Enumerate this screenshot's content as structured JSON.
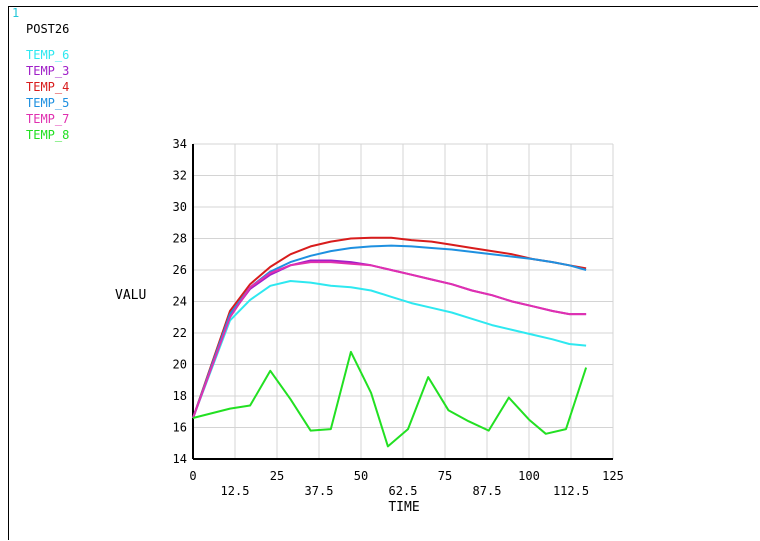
{
  "window_number": "1",
  "plot_title": "POST26",
  "colors": {
    "grid": "#d4d4d4",
    "axis": "#000000",
    "text": "#000000"
  },
  "chart_data": {
    "type": "line",
    "title": "POST26",
    "xlabel": "TIME",
    "ylabel": "VALU",
    "xlim": [
      0,
      125
    ],
    "ylim": [
      14,
      34
    ],
    "x_ticks": [
      0,
      12.5,
      25,
      37.5,
      50,
      62.5,
      75,
      87.5,
      100,
      112.5,
      125
    ],
    "x_tick_labels": [
      "0",
      "12.5",
      "25",
      "37.5",
      "50",
      "62.5",
      "75",
      "87.5",
      "100",
      "112.5",
      "125"
    ],
    "y_ticks": [
      14,
      16,
      18,
      20,
      22,
      24,
      26,
      28,
      30,
      32,
      34
    ],
    "y_tick_labels": [
      "14",
      "16",
      "18",
      "20",
      "22",
      "24",
      "26",
      "28",
      "30",
      "32",
      "34"
    ],
    "grid": true,
    "legend_position": "top-left",
    "series": [
      {
        "name": "TEMP_6",
        "color": "#2ee8f0",
        "points": [
          [
            0,
            16.6
          ],
          [
            11,
            22.8
          ],
          [
            17,
            24.1
          ],
          [
            23,
            25.0
          ],
          [
            29,
            25.3
          ],
          [
            35,
            25.2
          ],
          [
            41,
            25.0
          ],
          [
            47,
            24.9
          ],
          [
            53,
            24.7
          ],
          [
            59,
            24.3
          ],
          [
            65,
            23.9
          ],
          [
            71,
            23.6
          ],
          [
            77,
            23.3
          ],
          [
            83,
            22.9
          ],
          [
            89,
            22.5
          ],
          [
            95,
            22.2
          ],
          [
            101,
            21.9
          ],
          [
            107,
            21.6
          ],
          [
            112,
            21.3
          ],
          [
            117,
            21.2
          ]
        ]
      },
      {
        "name": "TEMP_3",
        "color": "#a020c8",
        "points": [
          [
            0,
            16.6
          ],
          [
            11,
            23.1
          ],
          [
            17,
            24.8
          ],
          [
            23,
            25.7
          ],
          [
            29,
            26.3
          ],
          [
            35,
            26.6
          ],
          [
            41,
            26.6
          ],
          [
            47,
            26.5
          ],
          [
            53,
            26.3
          ],
          [
            59,
            26.0
          ],
          [
            65,
            25.7
          ],
          [
            71,
            25.4
          ],
          [
            77,
            25.1
          ],
          [
            83,
            24.7
          ],
          [
            89,
            24.4
          ],
          [
            95,
            24.0
          ],
          [
            101,
            23.7
          ],
          [
            107,
            23.4
          ],
          [
            112,
            23.2
          ],
          [
            117,
            23.2
          ]
        ]
      },
      {
        "name": "TEMP_4",
        "color": "#d81c1c",
        "points": [
          [
            0,
            16.6
          ],
          [
            11,
            23.4
          ],
          [
            17,
            25.1
          ],
          [
            23,
            26.2
          ],
          [
            29,
            27.0
          ],
          [
            35,
            27.5
          ],
          [
            41,
            27.8
          ],
          [
            47,
            28.0
          ],
          [
            53,
            28.05
          ],
          [
            59,
            28.05
          ],
          [
            65,
            27.9
          ],
          [
            71,
            27.8
          ],
          [
            77,
            27.6
          ],
          [
            83,
            27.4
          ],
          [
            89,
            27.2
          ],
          [
            95,
            27.0
          ],
          [
            101,
            26.7
          ],
          [
            107,
            26.5
          ],
          [
            112,
            26.3
          ],
          [
            117,
            26.1
          ]
        ]
      },
      {
        "name": "TEMP_5",
        "color": "#1e90e0",
        "points": [
          [
            0,
            16.6
          ],
          [
            11,
            23.2
          ],
          [
            17,
            24.9
          ],
          [
            23,
            25.9
          ],
          [
            29,
            26.5
          ],
          [
            35,
            26.9
          ],
          [
            41,
            27.2
          ],
          [
            47,
            27.4
          ],
          [
            53,
            27.5
          ],
          [
            59,
            27.55
          ],
          [
            65,
            27.5
          ],
          [
            71,
            27.4
          ],
          [
            77,
            27.3
          ],
          [
            83,
            27.15
          ],
          [
            89,
            27.0
          ],
          [
            95,
            26.85
          ],
          [
            101,
            26.7
          ],
          [
            107,
            26.5
          ],
          [
            112,
            26.3
          ],
          [
            117,
            26.0
          ]
        ]
      },
      {
        "name": "TEMP_7",
        "color": "#e030b0",
        "points": [
          [
            0,
            16.6
          ],
          [
            11,
            23.0
          ],
          [
            17,
            24.9
          ],
          [
            23,
            25.8
          ],
          [
            29,
            26.3
          ],
          [
            35,
            26.5
          ],
          [
            41,
            26.5
          ],
          [
            47,
            26.4
          ],
          [
            53,
            26.3
          ],
          [
            59,
            26.0
          ],
          [
            65,
            25.7
          ],
          [
            71,
            25.4
          ],
          [
            77,
            25.1
          ],
          [
            83,
            24.7
          ],
          [
            89,
            24.4
          ],
          [
            95,
            24.0
          ],
          [
            101,
            23.7
          ],
          [
            107,
            23.4
          ],
          [
            112,
            23.2
          ],
          [
            117,
            23.2
          ]
        ]
      },
      {
        "name": "TEMP_8",
        "color": "#22e022",
        "points": [
          [
            0,
            16.6
          ],
          [
            11,
            17.2
          ],
          [
            17,
            17.4
          ],
          [
            23,
            19.6
          ],
          [
            29,
            17.8
          ],
          [
            35,
            15.8
          ],
          [
            41,
            15.9
          ],
          [
            47,
            20.8
          ],
          [
            53,
            18.2
          ],
          [
            58,
            14.8
          ],
          [
            64,
            15.9
          ],
          [
            70,
            19.2
          ],
          [
            76,
            17.1
          ],
          [
            82,
            16.4
          ],
          [
            88,
            15.8
          ],
          [
            94,
            17.9
          ],
          [
            100,
            16.5
          ],
          [
            105,
            15.6
          ],
          [
            111,
            15.9
          ],
          [
            117,
            19.8
          ]
        ]
      }
    ]
  }
}
